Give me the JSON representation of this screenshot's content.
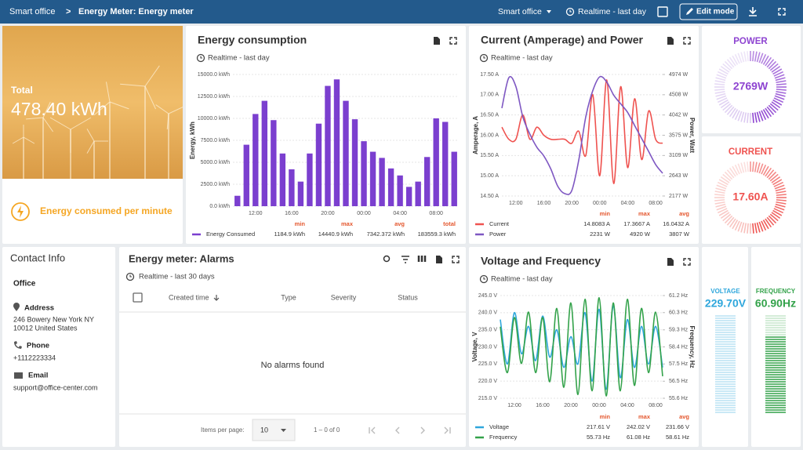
{
  "header": {
    "breadcrumb": [
      "Smart office",
      "Energy Meter: Energy meter"
    ],
    "separator": ">",
    "entity": "Smart office",
    "timewindow": "Realtime - last day",
    "edit_button": "Edit mode"
  },
  "total": {
    "label": "Total",
    "value": "478.40 kWh",
    "footer": "Energy consumed per minute"
  },
  "energy_chart": {
    "type": "bar",
    "title": "Energy consumption",
    "subtitle": "Realtime - last day",
    "y_label": "Energy, kWh",
    "categories": [
      null,
      null,
      "12:00",
      null,
      null,
      null,
      "16:00",
      null,
      null,
      null,
      "20:00",
      null,
      null,
      null,
      "00:00",
      null,
      null,
      null,
      "04:00",
      null,
      null,
      null,
      "08:00",
      null,
      null
    ],
    "ylim": [
      0,
      15000
    ],
    "yticks": [
      {
        "value": 0,
        "label": "0.0 kWh"
      },
      {
        "value": 2500,
        "label": "2500.0 kWh"
      },
      {
        "value": 5000,
        "label": "5000.0 kWh"
      },
      {
        "value": 7500,
        "label": "7500.0 kWh"
      },
      {
        "value": 10000,
        "label": "10000.0 kWh"
      },
      {
        "value": 12500,
        "label": "12500.0 kWh"
      },
      {
        "value": 15000,
        "label": "15000.0 kWh"
      }
    ],
    "grid": true,
    "stat_headers": [
      "min",
      "max",
      "avg",
      "total"
    ],
    "series": [
      {
        "name": "Energy Consumed",
        "color": "#7b3fcf",
        "values": [
          1184.9,
          7000,
          10500,
          12000,
          9800,
          6000,
          4200,
          2800,
          6000,
          9400,
          13700,
          14440.9,
          12000,
          9900,
          7400,
          6200,
          5500,
          4300,
          3500,
          2200,
          2800,
          5600,
          10000,
          9600,
          6200
        ],
        "stats": [
          "1184.9 kWh",
          "14440.9 kWh",
          "7342.372 kWh",
          "183559.3 kWh"
        ]
      }
    ]
  },
  "current_power_chart": {
    "type": "line",
    "title": "Current (Amperage) and Power",
    "subtitle": "Realtime - last day",
    "y_label": "Amperage, A",
    "y2_label": "Power, Watt",
    "categories": [
      null,
      null,
      "12:00",
      null,
      null,
      null,
      "16:00",
      null,
      null,
      null,
      "20:00",
      null,
      null,
      null,
      "00:00",
      null,
      null,
      null,
      "04:00",
      null,
      null,
      null,
      "08:00",
      null
    ],
    "ylim": [
      14.5,
      17.5
    ],
    "yticks": [
      {
        "value": 14.5,
        "label": "14.50 A"
      },
      {
        "value": 15,
        "label": "15.00 A"
      },
      {
        "value": 15.5,
        "label": "15.50 A"
      },
      {
        "value": 16,
        "label": "16.00 A"
      },
      {
        "value": 16.5,
        "label": "16.50 A"
      },
      {
        "value": 17,
        "label": "17.00 A"
      },
      {
        "value": 17.5,
        "label": "17.50 A"
      }
    ],
    "y2lim": [
      2177,
      4974
    ],
    "y2ticks": [
      {
        "value": 2177,
        "label": "2177 W"
      },
      {
        "value": 2643.2,
        "label": "2643 W"
      },
      {
        "value": 3109.3,
        "label": "3109 W"
      },
      {
        "value": 3575.5,
        "label": "3575 W"
      },
      {
        "value": 4041.7,
        "label": "4042 W"
      },
      {
        "value": 4507.8,
        "label": "4508 W"
      },
      {
        "value": 4974,
        "label": "4974 W"
      }
    ],
    "grid": true,
    "stat_headers": [
      "min",
      "max",
      "avg"
    ],
    "series": [
      {
        "name": "Current",
        "color": "#ef5350",
        "values": [
          16.2,
          15.9,
          15.9,
          16.5,
          15.9,
          16.2,
          16.0,
          15.9,
          15.9,
          15.9,
          15.8,
          16.1,
          15.5,
          17.0,
          15.0,
          17.3667,
          14.8083,
          17.2,
          15.2,
          16.9,
          15.4,
          16.6,
          15.9,
          15.8
        ],
        "stats": [
          "14.8083 A",
          "17.3667 A",
          "16.0432 A"
        ]
      },
      {
        "name": "Power",
        "color": "#7e57c2",
        "axis": "y2",
        "values": [
          4200,
          4900,
          4700,
          4000,
          3600,
          3300,
          3100,
          2800,
          2400,
          2231,
          2300,
          3000,
          4000,
          4600,
          4920,
          4800,
          4500,
          4300,
          4100,
          3800,
          3500,
          3200,
          2900,
          2700
        ],
        "stats": [
          "2231 W",
          "4920 W",
          "3807 W"
        ]
      }
    ]
  },
  "power_gauge": {
    "title": "POWER",
    "value": "2769W"
  },
  "current_gauge": {
    "title": "CURRENT",
    "value": "17.60A"
  },
  "contact": {
    "title": "Contact Info",
    "name": "Office",
    "address_label": "Address",
    "address": [
      "246 Bowery New York NY",
      "10012 United States"
    ],
    "phone_label": "Phone",
    "phone": "+1112223334",
    "email_label": "Email",
    "email": "support@office-center.com"
  },
  "alarms": {
    "title": "Energy meter: Alarms",
    "subtitle": "Realtime - last 30 days",
    "columns": [
      "Created time",
      "Type",
      "Severity",
      "Status"
    ],
    "empty": "No alarms found",
    "page_size_label": "Items per page:",
    "page_size": "10",
    "range": "1 – 0 of 0"
  },
  "voltage_chart": {
    "type": "line",
    "title": "Voltage and Frequency",
    "subtitle": "Realtime - last day",
    "y_label": "Voltage, V",
    "y2_label": "Frequency, Hz",
    "categories": [
      null,
      null,
      "12:00",
      null,
      null,
      null,
      "16:00",
      null,
      null,
      null,
      "20:00",
      null,
      null,
      null,
      "00:00",
      null,
      null,
      null,
      "04:00",
      null,
      null,
      null,
      "08:00",
      null
    ],
    "ylim": [
      215,
      245
    ],
    "yticks": [
      {
        "value": 215,
        "label": "215.0 V"
      },
      {
        "value": 220,
        "label": "220.0 V"
      },
      {
        "value": 225,
        "label": "225.0 V"
      },
      {
        "value": 230,
        "label": "230.0 V"
      },
      {
        "value": 235,
        "label": "235.0 V"
      },
      {
        "value": 240,
        "label": "240.0 V"
      },
      {
        "value": 245,
        "label": "245.0 V"
      }
    ],
    "y2lim": [
      55.6,
      61.2
    ],
    "y2ticks": [
      {
        "value": 55.6,
        "label": "55.6 Hz"
      },
      {
        "value": 56.53,
        "label": "56.5 Hz"
      },
      {
        "value": 57.47,
        "label": "57.5 Hz"
      },
      {
        "value": 58.4,
        "label": "58.4 Hz"
      },
      {
        "value": 59.33,
        "label": "59.3 Hz"
      },
      {
        "value": 60.27,
        "label": "60.3 Hz"
      },
      {
        "value": 61.2,
        "label": "61.2 Hz"
      }
    ],
    "grid": true,
    "stat_headers": [
      "min",
      "max",
      "avg"
    ],
    "series": [
      {
        "name": "Voltage",
        "color": "#2fa7dc",
        "values": [
          238,
          225,
          240,
          228,
          236,
          226,
          239,
          227,
          235,
          224,
          233,
          225,
          240,
          220,
          241,
          217.61,
          242.02,
          221,
          238,
          224,
          236,
          225,
          236,
          224
        ],
        "stats": [
          "217.61 V",
          "242.02 V",
          "231.66 V"
        ]
      },
      {
        "name": "Frequency",
        "color": "#33a24a",
        "axis": "y2",
        "values": [
          59.5,
          57.0,
          60.0,
          57.5,
          60.3,
          57.0,
          60.0,
          56.5,
          60.5,
          56.2,
          60.8,
          55.8,
          61.0,
          56.0,
          61.08,
          55.73,
          60.8,
          56.0,
          61.0,
          56.3,
          60.5,
          57.0,
          60.3,
          56.8
        ],
        "stats": [
          "55.73 Hz",
          "61.08 Hz",
          "58.61 Hz"
        ]
      }
    ]
  },
  "voltage_gauge": {
    "title": "VOLTAGE",
    "value": "229.70V"
  },
  "frequency_gauge": {
    "title": "FREQUENCY",
    "value": "60.90Hz"
  }
}
